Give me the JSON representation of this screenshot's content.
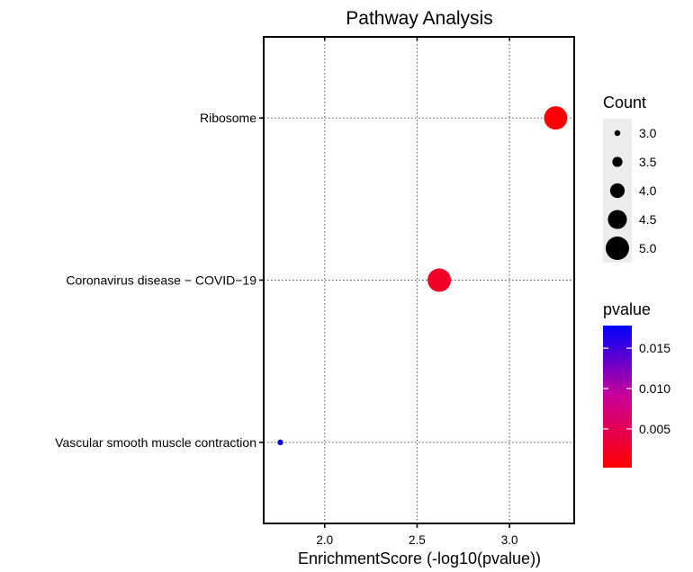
{
  "chart_data": {
    "type": "scatter",
    "title": "Pathway Analysis",
    "xlabel": "EnrichmentScore (-log10(pvalue))",
    "ylabel": "",
    "xlim": [
      1.67,
      3.35
    ],
    "x_ticks": [
      2.0,
      2.5,
      3.0
    ],
    "x_tick_labels": [
      "2.0",
      "2.5",
      "3.0"
    ],
    "grid": true,
    "categories": [
      "Ribosome",
      "Coronavirus disease − COVID−19",
      "Vascular smooth muscle contraction"
    ],
    "points": [
      {
        "category": "Ribosome",
        "x": 3.25,
        "count": 5,
        "pvalue": 0.00056
      },
      {
        "category": "Coronavirus disease − COVID−19",
        "x": 2.62,
        "count": 5,
        "pvalue": 0.0024
      },
      {
        "category": "Vascular smooth muscle contraction",
        "x": 1.76,
        "count": 3,
        "pvalue": 0.0174
      }
    ],
    "size_legend": {
      "title": "Count",
      "values": [
        3.0,
        3.5,
        4.0,
        4.5,
        5.0
      ],
      "labels": [
        "3.0",
        "3.5",
        "4.0",
        "4.5",
        "5.0"
      ]
    },
    "color_legend": {
      "title": "pvalue",
      "range": [
        0.0002,
        0.0178
      ],
      "ticks": [
        0.005,
        0.01,
        0.015
      ],
      "tick_labels": [
        "0.005",
        "0.010",
        "0.015"
      ],
      "low_color": "#ff0000",
      "high_color": "#0000ff"
    },
    "legend_position": "right"
  }
}
